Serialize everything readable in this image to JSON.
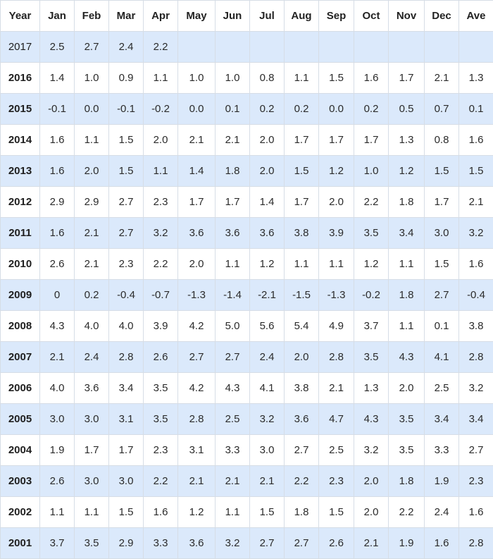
{
  "header": [
    "Year",
    "Jan",
    "Feb",
    "Mar",
    "Apr",
    "May",
    "Jun",
    "Jul",
    "Aug",
    "Sep",
    "Oct",
    "Nov",
    "Dec",
    "Ave"
  ],
  "rows": [
    [
      "2017",
      "2.5",
      "2.7",
      "2.4",
      "2.2",
      "",
      "",
      "",
      "",
      "",
      "",
      "",
      "",
      ""
    ],
    [
      "2016",
      "1.4",
      "1.0",
      "0.9",
      "1.1",
      "1.0",
      "1.0",
      "0.8",
      "1.1",
      "1.5",
      "1.6",
      "1.7",
      "2.1",
      "1.3"
    ],
    [
      "2015",
      "-0.1",
      "0.0",
      "-0.1",
      "-0.2",
      "0.0",
      "0.1",
      "0.2",
      "0.2",
      "0.0",
      "0.2",
      "0.5",
      "0.7",
      "0.1"
    ],
    [
      "2014",
      "1.6",
      "1.1",
      "1.5",
      "2.0",
      "2.1",
      "2.1",
      "2.0",
      "1.7",
      "1.7",
      "1.7",
      "1.3",
      "0.8",
      "1.6"
    ],
    [
      "2013",
      "1.6",
      "2.0",
      "1.5",
      "1.1",
      "1.4",
      "1.8",
      "2.0",
      "1.5",
      "1.2",
      "1.0",
      "1.2",
      "1.5",
      "1.5"
    ],
    [
      "2012",
      "2.9",
      "2.9",
      "2.7",
      "2.3",
      "1.7",
      "1.7",
      "1.4",
      "1.7",
      "2.0",
      "2.2",
      "1.8",
      "1.7",
      "2.1"
    ],
    [
      "2011",
      "1.6",
      "2.1",
      "2.7",
      "3.2",
      "3.6",
      "3.6",
      "3.6",
      "3.8",
      "3.9",
      "3.5",
      "3.4",
      "3.0",
      "3.2"
    ],
    [
      "2010",
      "2.6",
      "2.1",
      "2.3",
      "2.2",
      "2.0",
      "1.1",
      "1.2",
      "1.1",
      "1.1",
      "1.2",
      "1.1",
      "1.5",
      "1.6"
    ],
    [
      "2009",
      "0",
      "0.2",
      "-0.4",
      "-0.7",
      "-1.3",
      "-1.4",
      "-2.1",
      "-1.5",
      "-1.3",
      "-0.2",
      "1.8",
      "2.7",
      "-0.4"
    ],
    [
      "2008",
      "4.3",
      "4.0",
      "4.0",
      "3.9",
      "4.2",
      "5.0",
      "5.6",
      "5.4",
      "4.9",
      "3.7",
      "1.1",
      "0.1",
      "3.8"
    ],
    [
      "2007",
      "2.1",
      "2.4",
      "2.8",
      "2.6",
      "2.7",
      "2.7",
      "2.4",
      "2.0",
      "2.8",
      "3.5",
      "4.3",
      "4.1",
      "2.8"
    ],
    [
      "2006",
      "4.0",
      "3.6",
      "3.4",
      "3.5",
      "4.2",
      "4.3",
      "4.1",
      "3.8",
      "2.1",
      "1.3",
      "2.0",
      "2.5",
      "3.2"
    ],
    [
      "2005",
      "3.0",
      "3.0",
      "3.1",
      "3.5",
      "2.8",
      "2.5",
      "3.2",
      "3.6",
      "4.7",
      "4.3",
      "3.5",
      "3.4",
      "3.4"
    ],
    [
      "2004",
      "1.9",
      "1.7",
      "1.7",
      "2.3",
      "3.1",
      "3.3",
      "3.0",
      "2.7",
      "2.5",
      "3.2",
      "3.5",
      "3.3",
      "2.7"
    ],
    [
      "2003",
      "2.6",
      "3.0",
      "3.0",
      "2.2",
      "2.1",
      "2.1",
      "2.1",
      "2.2",
      "2.3",
      "2.0",
      "1.8",
      "1.9",
      "2.3"
    ],
    [
      "2002",
      "1.1",
      "1.1",
      "1.5",
      "1.6",
      "1.2",
      "1.1",
      "1.5",
      "1.8",
      "1.5",
      "2.0",
      "2.2",
      "2.4",
      "1.6"
    ],
    [
      "2001",
      "3.7",
      "3.5",
      "2.9",
      "3.3",
      "3.6",
      "3.2",
      "2.7",
      "2.7",
      "2.6",
      "2.1",
      "1.9",
      "1.6",
      "2.8"
    ]
  ],
  "colors": {
    "row_blue": "#dbe9fb",
    "row_white": "#ffffff",
    "border": "#d6dde6"
  }
}
